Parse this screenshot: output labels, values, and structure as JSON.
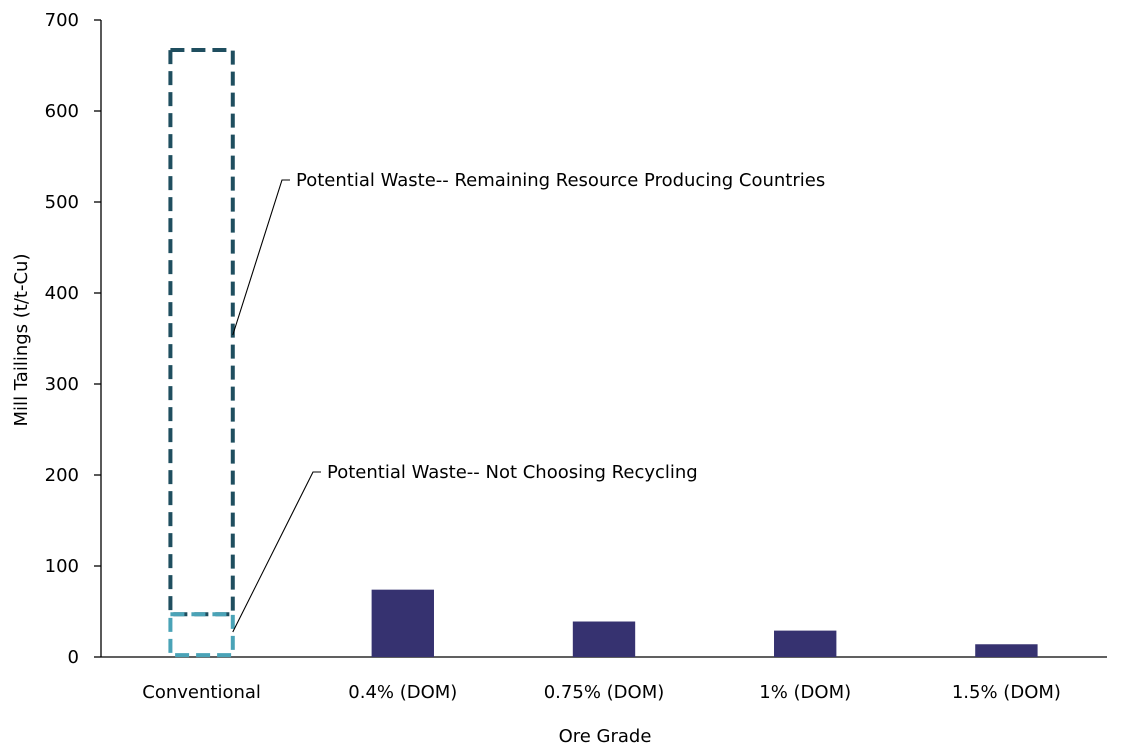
{
  "chart_data": {
    "type": "bar",
    "title": "",
    "xlabel": "Ore Grade",
    "ylabel": "Mill Tailings (t/t-Cu)",
    "ylim": [
      0,
      700
    ],
    "yticks": [
      0,
      100,
      200,
      300,
      400,
      500,
      600,
      700
    ],
    "grid": false,
    "legend": "none",
    "categories": [
      "Conventional",
      "0.4% (DOM)",
      "0.75% (DOM)",
      "1% (DOM)",
      "1.5% (DOM)"
    ],
    "values": [
      0,
      74,
      39,
      29,
      14
    ],
    "bar_color": "#363270",
    "potential_waste": [
      {
        "category": "Conventional",
        "from": 47,
        "to": 667,
        "color": "#1f4e5f",
        "label": "Potential Waste-- Remaining Resource Producing Countries"
      },
      {
        "category": "Conventional",
        "from": 2,
        "to": 47,
        "color": "#4aa3b7",
        "label": "Potential Waste-- Not Choosing Recycling"
      }
    ]
  }
}
